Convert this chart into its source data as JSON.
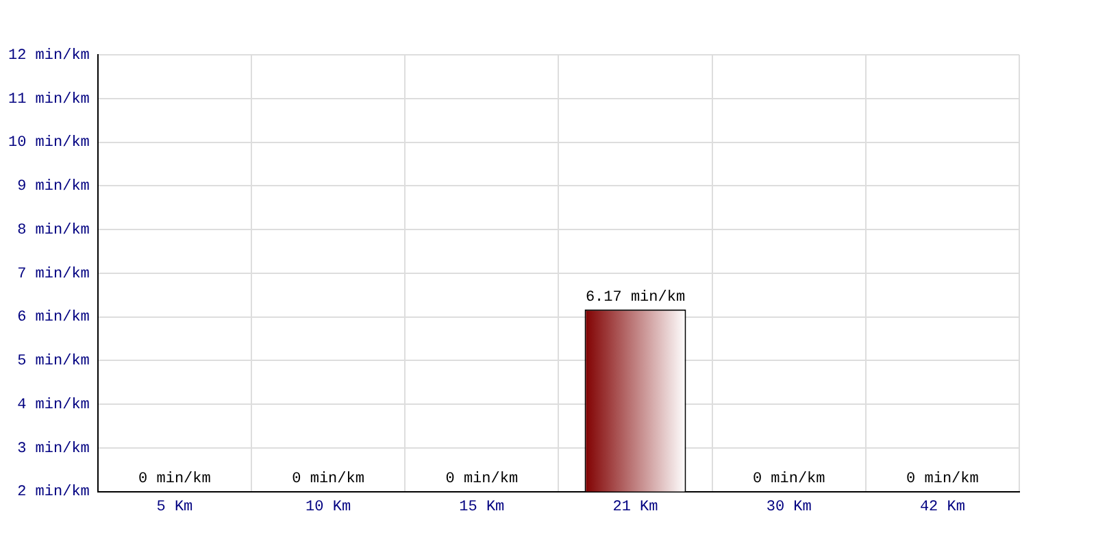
{
  "chart_data": {
    "type": "bar",
    "categories": [
      "5 Km",
      "10 Km",
      "15 Km",
      "21 Km",
      "30 Km",
      "42 Km"
    ],
    "values": [
      null,
      null,
      null,
      6.17,
      null,
      null
    ],
    "value_labels": [
      "0 min/km",
      "0 min/km",
      "0 min/km",
      "6.17 min/km",
      "0 min/km",
      "0 min/km"
    ],
    "color": "#800000",
    "ylim": [
      2,
      12
    ],
    "yticks": [
      {
        "value": 2,
        "label": "2 min/km"
      },
      {
        "value": 3,
        "label": "3 min/km"
      },
      {
        "value": 4,
        "label": "4 min/km"
      },
      {
        "value": 5,
        "label": "5 min/km"
      },
      {
        "value": 6,
        "label": "6 min/km"
      },
      {
        "value": 7,
        "label": "7 min/km"
      },
      {
        "value": 8,
        "label": "8 min/km"
      },
      {
        "value": 9,
        "label": "9 min/km"
      },
      {
        "value": 10,
        "label": "10 min/km"
      },
      {
        "value": 11,
        "label": "11 min/km"
      },
      {
        "value": 12,
        "label": "12 min/km"
      }
    ],
    "grid": true,
    "legend": false
  }
}
